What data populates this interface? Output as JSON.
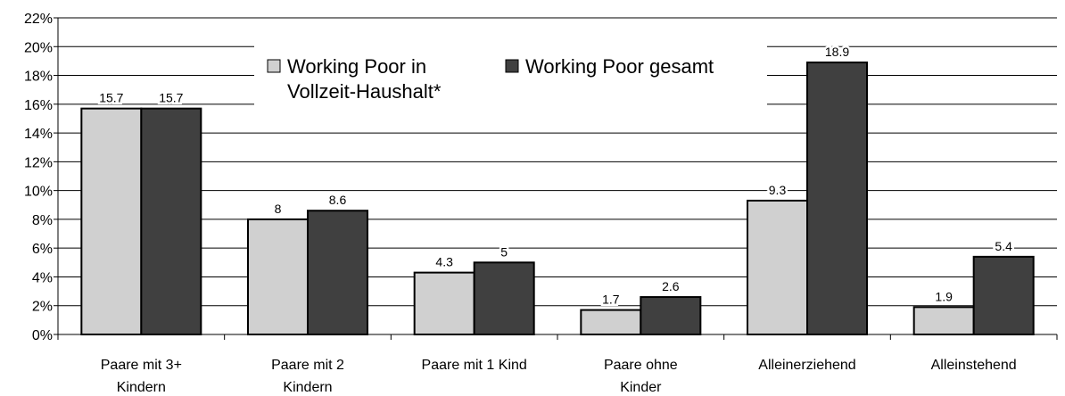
{
  "chart_data": {
    "type": "bar",
    "categories": [
      "Paare mit 3+\nKindern",
      "Paare mit 2\nKindern",
      "Paare mit 1 Kind",
      "Paare ohne\nKinder",
      "Alleinerziehend",
      "Alleinstehend"
    ],
    "series": [
      {
        "name": "Working Poor in\nVollzeit-Haushalt*",
        "color": "#d0d0d0",
        "values": [
          15.7,
          8,
          4.3,
          1.7,
          9.3,
          1.9
        ]
      },
      {
        "name": "Working Poor gesamt",
        "color": "#404040",
        "values": [
          15.7,
          8.6,
          5,
          2.6,
          18.9,
          5.4
        ]
      }
    ],
    "ylim": [
      0,
      22
    ],
    "yticks": [
      {
        "value": 0,
        "label": "0%"
      },
      {
        "value": 2,
        "label": "2%"
      },
      {
        "value": 4,
        "label": "4%"
      },
      {
        "value": 6,
        "label": "6%"
      },
      {
        "value": 8,
        "label": "8%"
      },
      {
        "value": 10,
        "label": "10%"
      },
      {
        "value": 12,
        "label": "12%"
      },
      {
        "value": 14,
        "label": "14%"
      },
      {
        "value": 16,
        "label": "16%"
      },
      {
        "value": 18,
        "label": "18%"
      },
      {
        "value": 20,
        "label": "20%"
      },
      {
        "value": 22,
        "label": "22%"
      }
    ],
    "grid": true
  }
}
